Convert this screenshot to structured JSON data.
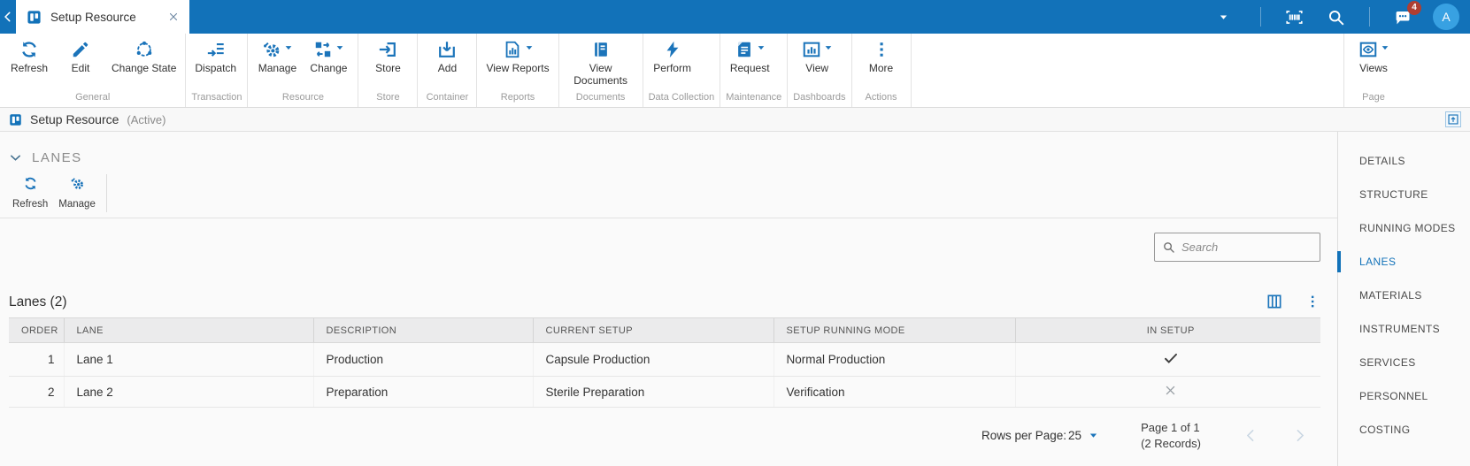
{
  "topbar": {
    "tab_title": "Setup Resource",
    "badge_count": "4",
    "avatar_initial": "A",
    "icons": [
      "back-chevron-icon",
      "app-kanban-icon",
      "close-icon",
      "dropdown-caret-icon",
      "barcode-scanner-icon",
      "search-icon",
      "messages-icon",
      "avatar"
    ]
  },
  "ribbon": {
    "groups": [
      {
        "label": "General",
        "buttons": [
          {
            "label": "Refresh",
            "icon": "refresh-icon",
            "dropdown": false
          },
          {
            "label": "Edit",
            "icon": "edit-icon",
            "dropdown": false
          },
          {
            "label": "Change State",
            "icon": "change-state-icon",
            "dropdown": false
          }
        ]
      },
      {
        "label": "Transaction",
        "buttons": [
          {
            "label": "Dispatch",
            "icon": "dispatch-icon",
            "dropdown": false
          }
        ]
      },
      {
        "label": "Resource",
        "buttons": [
          {
            "label": "Manage",
            "icon": "manage-icon",
            "dropdown": true
          },
          {
            "label": "Change",
            "icon": "change-icon",
            "dropdown": true
          }
        ]
      },
      {
        "label": "Store",
        "buttons": [
          {
            "label": "Store",
            "icon": "store-icon",
            "dropdown": false
          }
        ]
      },
      {
        "label": "Container",
        "buttons": [
          {
            "label": "Add",
            "icon": "add-icon",
            "dropdown": false
          }
        ]
      },
      {
        "label": "Reports",
        "buttons": [
          {
            "label": "View Reports",
            "icon": "view-reports-icon",
            "dropdown": true
          }
        ]
      },
      {
        "label": "Documents",
        "buttons": [
          {
            "label": "View Documents",
            "icon": "view-documents-icon",
            "dropdown": false
          }
        ]
      },
      {
        "label": "Data Collection",
        "buttons": [
          {
            "label": "Perform",
            "icon": "perform-icon",
            "dropdown": false
          }
        ]
      },
      {
        "label": "Maintenance",
        "buttons": [
          {
            "label": "Request",
            "icon": "request-icon",
            "dropdown": true
          }
        ]
      },
      {
        "label": "Dashboards",
        "buttons": [
          {
            "label": "View",
            "icon": "view-dashboard-icon",
            "dropdown": true
          }
        ]
      },
      {
        "label": "Actions",
        "buttons": [
          {
            "label": "More",
            "icon": "more-icon",
            "dropdown": false
          }
        ]
      }
    ],
    "page_group": {
      "label": "Page",
      "buttons": [
        {
          "label": "Views",
          "icon": "views-eye-icon",
          "dropdown": true
        }
      ]
    }
  },
  "titlebar": {
    "title": "Setup Resource",
    "status": "(Active)"
  },
  "section": {
    "title": "LANES",
    "toolbar": [
      {
        "label": "Refresh",
        "icon": "refresh-icon"
      },
      {
        "label": "Manage",
        "icon": "manage-icon"
      }
    ],
    "search_placeholder": "Search"
  },
  "table": {
    "title": "Lanes (2)",
    "columns": [
      "ORDER",
      "LANE",
      "DESCRIPTION",
      "CURRENT SETUP",
      "SETUP RUNNING MODE",
      "IN SETUP"
    ],
    "rows": [
      {
        "order": "1",
        "lane": "Lane 1",
        "description": "Production",
        "current_setup": "Capsule Production",
        "setup_running_mode": "Normal Production",
        "in_setup": true
      },
      {
        "order": "2",
        "lane": "Lane 2",
        "description": "Preparation",
        "current_setup": "Sterile Preparation",
        "setup_running_mode": "Verification",
        "in_setup": false
      }
    ],
    "footer": {
      "rows_per_page_label": "Rows per Page:",
      "rows_per_page_value": "25",
      "page_info": "Page 1 of 1",
      "records_info": "(2 Records)"
    }
  },
  "sidebar": {
    "items": [
      {
        "label": "DETAILS",
        "active": false
      },
      {
        "label": "STRUCTURE",
        "active": false
      },
      {
        "label": "RUNNING MODES",
        "active": false
      },
      {
        "label": "LANES",
        "active": true
      },
      {
        "label": "MATERIALS",
        "active": false
      },
      {
        "label": "INSTRUMENTS",
        "active": false
      },
      {
        "label": "SERVICES",
        "active": false
      },
      {
        "label": "PERSONNEL",
        "active": false
      },
      {
        "label": "COSTING",
        "active": false
      }
    ]
  },
  "colors": {
    "accent": "#1272b9",
    "badge": "#ae3e32",
    "avatar": "#38a1e2",
    "table_header_bg": "#ebebec"
  }
}
